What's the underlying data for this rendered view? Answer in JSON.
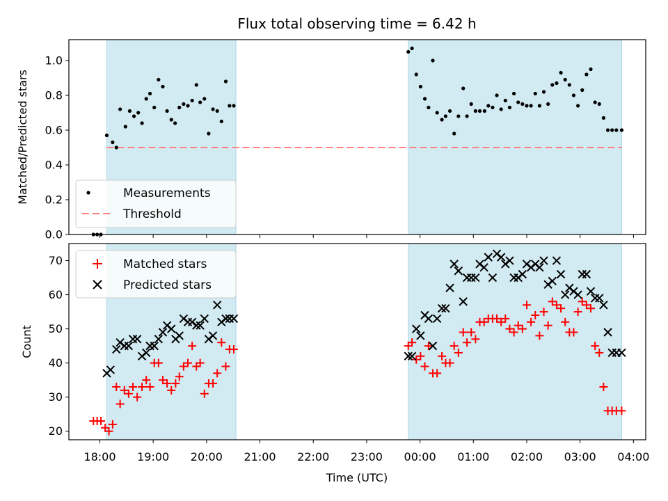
{
  "chart_data": [
    {
      "type": "scatter",
      "title": "Flux total observing time = 6.42 h",
      "ylabel": "Matched/Predicted stars",
      "xlabel": "",
      "ylim": [
        0,
        1.12
      ],
      "yticks": [
        0.0,
        0.2,
        0.4,
        0.6,
        0.8,
        1.0
      ],
      "ytick_labels": [
        "0.0",
        "0.2",
        "0.4",
        "0.6",
        "0.8",
        "1.0"
      ],
      "x_range_hours": [
        17.42,
        28.23
      ],
      "x_tick_hours": [
        18,
        19,
        20,
        21,
        22,
        23,
        24,
        25,
        26,
        27,
        28
      ],
      "shaded_intervals_hours": [
        [
          18.13,
          20.55
        ],
        [
          23.78,
          27.78
        ]
      ],
      "shade_color": "#add8e6",
      "legend": {
        "placement": "lower-left",
        "entries": [
          "Measurements",
          "Threshold"
        ]
      },
      "threshold": {
        "name": "Threshold",
        "value": 0.5,
        "x": [
          18.13,
          27.78
        ],
        "color": "#ff7f7f",
        "style": "dashed"
      },
      "series": [
        {
          "name": "Measurements",
          "color": "#000000",
          "marker": "dot",
          "x": [
            17.88,
            17.95,
            18.02,
            18.13,
            18.24,
            18.31,
            18.38,
            18.48,
            18.56,
            18.64,
            18.72,
            18.79,
            18.87,
            18.94,
            19.02,
            19.1,
            19.18,
            19.26,
            19.34,
            19.41,
            19.49,
            19.57,
            19.65,
            19.73,
            19.81,
            19.88,
            19.96,
            20.04,
            20.12,
            20.2,
            20.28,
            20.36,
            20.43,
            20.51,
            23.78,
            23.85,
            23.93,
            24.01,
            24.09,
            24.16,
            24.24,
            24.32,
            24.41,
            24.48,
            24.56,
            24.64,
            24.72,
            24.81,
            24.88,
            24.96,
            25.04,
            25.12,
            25.21,
            25.28,
            25.36,
            25.44,
            25.52,
            25.6,
            25.68,
            25.76,
            25.84,
            25.92,
            26.0,
            26.08,
            26.16,
            26.24,
            26.32,
            26.4,
            26.48,
            26.56,
            26.64,
            26.72,
            26.8,
            26.88,
            26.96,
            27.04,
            27.12,
            27.2,
            27.28,
            27.36,
            27.44,
            27.52,
            27.6,
            27.68,
            27.78
          ],
          "y": [
            0.0,
            0.0,
            0.0,
            0.57,
            0.53,
            0.5,
            0.72,
            0.62,
            0.71,
            0.68,
            0.7,
            0.64,
            0.78,
            0.81,
            0.73,
            0.89,
            0.85,
            0.71,
            0.66,
            0.64,
            0.73,
            0.75,
            0.74,
            0.77,
            0.86,
            0.76,
            0.78,
            0.58,
            0.72,
            0.71,
            0.65,
            0.88,
            0.74,
            0.74,
            1.05,
            1.07,
            0.92,
            0.85,
            0.78,
            0.73,
            1.0,
            0.7,
            0.66,
            0.68,
            0.71,
            0.58,
            0.68,
            0.84,
            0.68,
            0.75,
            0.71,
            0.71,
            0.71,
            0.74,
            0.73,
            0.8,
            0.72,
            0.77,
            0.73,
            0.81,
            0.76,
            0.75,
            0.74,
            0.74,
            0.81,
            0.74,
            0.82,
            0.75,
            0.86,
            0.87,
            0.93,
            0.89,
            0.86,
            0.8,
            0.74,
            0.83,
            0.92,
            0.95,
            0.76,
            0.75,
            0.67,
            0.6,
            0.6,
            0.6,
            0.6
          ]
        }
      ]
    },
    {
      "type": "scatter",
      "title": "",
      "ylabel": "Count",
      "xlabel": "Time (UTC)",
      "ylim": [
        17.5,
        75
      ],
      "yticks": [
        20,
        30,
        40,
        50,
        60,
        70
      ],
      "ytick_labels": [
        "20",
        "30",
        "40",
        "50",
        "60",
        "70"
      ],
      "x_range_hours": [
        17.42,
        28.23
      ],
      "x_tick_hours": [
        18,
        19,
        20,
        21,
        22,
        23,
        24,
        25,
        26,
        27,
        28
      ],
      "x_tick_labels": [
        "18:00",
        "19:00",
        "20:00",
        "21:00",
        "22:00",
        "23:00",
        "00:00",
        "01:00",
        "02:00",
        "03:00",
        "04:00"
      ],
      "shaded_intervals_hours": [
        [
          18.13,
          20.55
        ],
        [
          23.78,
          27.78
        ]
      ],
      "shade_color": "#add8e6",
      "legend": {
        "placement": "upper-left",
        "entries": [
          "Matched stars",
          "Predicted stars"
        ]
      },
      "series": [
        {
          "name": "Matched stars",
          "color": "#ff0000",
          "marker": "plus",
          "x": [
            17.88,
            17.95,
            18.02,
            18.1,
            18.17,
            18.24,
            18.31,
            18.38,
            18.46,
            18.54,
            18.62,
            18.7,
            18.79,
            18.87,
            18.94,
            19.02,
            19.1,
            19.18,
            19.26,
            19.34,
            19.42,
            19.49,
            19.57,
            19.65,
            19.73,
            19.81,
            19.88,
            19.96,
            20.04,
            20.12,
            20.2,
            20.28,
            20.36,
            20.43,
            20.51,
            23.78,
            23.85,
            23.93,
            24.01,
            24.09,
            24.16,
            24.24,
            24.32,
            24.41,
            24.48,
            24.56,
            24.64,
            24.72,
            24.81,
            24.88,
            24.96,
            25.04,
            25.12,
            25.2,
            25.28,
            25.36,
            25.44,
            25.52,
            25.6,
            25.68,
            25.76,
            25.84,
            25.92,
            26.0,
            26.08,
            26.16,
            26.24,
            26.32,
            26.4,
            26.48,
            26.56,
            26.64,
            26.72,
            26.8,
            26.88,
            26.96,
            27.04,
            27.12,
            27.2,
            27.28,
            27.36,
            27.44,
            27.52,
            27.6,
            27.68,
            27.78
          ],
          "y": [
            23,
            23,
            23,
            21,
            20,
            22,
            33,
            28,
            32,
            31,
            33,
            30,
            33,
            35,
            33,
            40,
            40,
            35,
            34,
            32,
            34,
            36,
            39,
            40,
            45,
            39,
            40,
            31,
            34,
            34,
            37,
            46,
            39,
            44,
            44,
            45,
            46,
            41,
            42,
            39,
            45,
            37,
            37,
            42,
            40,
            40,
            45,
            43,
            49,
            46,
            49,
            47,
            52,
            52,
            53,
            53,
            53,
            52,
            53,
            50,
            49,
            51,
            50,
            57,
            52,
            54,
            48,
            55,
            51,
            58,
            57,
            56,
            52,
            49,
            49,
            55,
            58,
            57,
            56,
            45,
            43,
            33,
            26,
            26,
            26,
            26
          ]
        },
        {
          "name": "Predicted stars",
          "color": "#000000",
          "marker": "x",
          "x": [
            18.13,
            18.2,
            18.31,
            18.38,
            18.46,
            18.54,
            18.62,
            18.7,
            18.79,
            18.87,
            18.94,
            19.02,
            19.1,
            19.18,
            19.26,
            19.34,
            19.42,
            19.49,
            19.57,
            19.65,
            19.73,
            19.81,
            19.88,
            19.96,
            20.04,
            20.12,
            20.2,
            20.28,
            20.36,
            20.43,
            20.51,
            23.78,
            23.85,
            23.93,
            24.01,
            24.09,
            24.16,
            24.24,
            24.32,
            24.41,
            24.48,
            24.56,
            24.64,
            24.72,
            24.81,
            24.88,
            24.96,
            25.04,
            25.12,
            25.2,
            25.28,
            25.36,
            25.44,
            25.52,
            25.6,
            25.68,
            25.76,
            25.84,
            25.92,
            26.0,
            26.08,
            26.16,
            26.24,
            26.32,
            26.4,
            26.48,
            26.56,
            26.64,
            26.72,
            26.8,
            26.88,
            26.96,
            27.04,
            27.12,
            27.2,
            27.28,
            27.36,
            27.44,
            27.52,
            27.6,
            27.68,
            27.78
          ],
          "y": [
            37,
            38,
            44,
            46,
            45,
            45,
            47,
            47,
            42,
            43,
            45,
            45,
            47,
            49,
            51,
            50,
            47,
            48,
            53,
            52,
            52,
            51,
            51,
            53,
            47,
            48,
            57,
            52,
            53,
            53,
            53,
            42,
            42,
            50,
            48,
            54,
            53,
            45,
            53,
            56,
            56,
            62,
            69,
            67,
            58,
            65,
            65,
            65,
            69,
            68,
            71,
            65,
            72,
            71,
            69,
            70,
            65,
            65,
            66,
            69,
            68,
            69,
            68,
            70,
            63,
            64,
            70,
            66,
            60,
            62,
            61,
            60,
            66,
            66,
            61,
            59,
            59,
            57,
            49,
            43,
            43,
            43
          ]
        }
      ]
    }
  ]
}
